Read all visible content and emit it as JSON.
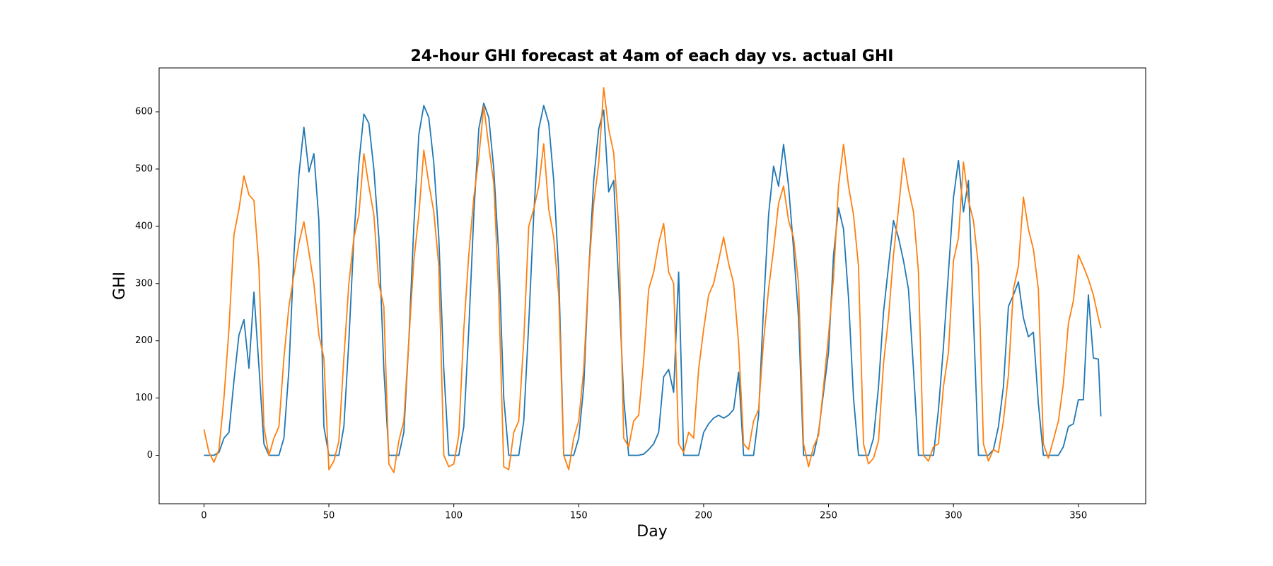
{
  "chart_data": {
    "type": "line",
    "title": "24-hour GHI forecast at 4am of each day vs. actual GHI",
    "x_label": "Day",
    "y_label": "GHI",
    "x": [
      0,
      2,
      4,
      6,
      8,
      10,
      12,
      14,
      16,
      18,
      20,
      22,
      24,
      26,
      28,
      30,
      32,
      34,
      36,
      38,
      40,
      42,
      44,
      46,
      48,
      50,
      52,
      54,
      56,
      58,
      60,
      62,
      64,
      66,
      68,
      70,
      72,
      74,
      76,
      78,
      80,
      82,
      84,
      86,
      88,
      90,
      92,
      94,
      96,
      98,
      100,
      102,
      104,
      106,
      108,
      110,
      112,
      114,
      116,
      118,
      120,
      122,
      124,
      126,
      128,
      130,
      132,
      134,
      136,
      138,
      140,
      142,
      144,
      146,
      148,
      150,
      152,
      154,
      156,
      158,
      160,
      162,
      164,
      166,
      168,
      170,
      172,
      174,
      176,
      178,
      180,
      182,
      184,
      186,
      188,
      190,
      192,
      194,
      196,
      198,
      200,
      202,
      204,
      206,
      208,
      210,
      212,
      214,
      216,
      218,
      220,
      222,
      224,
      226,
      228,
      230,
      232,
      234,
      236,
      238,
      240,
      242,
      244,
      246,
      248,
      250,
      252,
      254,
      256,
      258,
      260,
      262,
      264,
      266,
      268,
      270,
      272,
      274,
      276,
      278,
      280,
      282,
      284,
      286,
      288,
      290,
      292,
      294,
      296,
      298,
      300,
      302,
      304,
      306,
      308,
      310,
      312,
      314,
      316,
      318,
      320,
      322,
      324,
      326,
      328,
      330,
      332,
      334,
      336,
      338,
      340,
      342,
      344,
      346,
      348,
      350,
      352,
      354,
      356,
      358,
      359
    ],
    "series": [
      {
        "color": "#1f77b4",
        "values": [
          0,
          0,
          0,
          5,
          30,
          40,
          130,
          210,
          237,
          152,
          285,
          155,
          20,
          0,
          0,
          0,
          30,
          150,
          350,
          490,
          573,
          495,
          527,
          410,
          50,
          0,
          0,
          0,
          50,
          200,
          380,
          510,
          596,
          580,
          500,
          380,
          150,
          0,
          0,
          0,
          40,
          200,
          400,
          560,
          611,
          590,
          510,
          380,
          150,
          0,
          0,
          0,
          50,
          220,
          420,
          570,
          615,
          590,
          500,
          350,
          100,
          0,
          0,
          0,
          60,
          230,
          420,
          570,
          611,
          580,
          480,
          320,
          0,
          0,
          0,
          30,
          120,
          320,
          480,
          570,
          603,
          460,
          480,
          300,
          100,
          0,
          0,
          0,
          2,
          10,
          20,
          40,
          137,
          150,
          110,
          320,
          0,
          0,
          0,
          0,
          40,
          55,
          65,
          70,
          65,
          70,
          80,
          145,
          0,
          0,
          0,
          70,
          260,
          420,
          505,
          470,
          543,
          470,
          360,
          240,
          0,
          0,
          0,
          40,
          110,
          180,
          350,
          432,
          395,
          275,
          100,
          0,
          0,
          0,
          30,
          120,
          250,
          330,
          410,
          380,
          340,
          290,
          150,
          0,
          0,
          0,
          0,
          80,
          190,
          320,
          450,
          515,
          425,
          480,
          240,
          0,
          0,
          0,
          10,
          50,
          120,
          260,
          280,
          303,
          240,
          207,
          215,
          90,
          0,
          0,
          0,
          0,
          15,
          50,
          55,
          97,
          97,
          280,
          170,
          168,
          68
        ]
      },
      {
        "color": "#ff7f0e",
        "values": [
          45,
          5,
          -12,
          10,
          100,
          220,
          385,
          430,
          488,
          455,
          445,
          330,
          50,
          0,
          30,
          50,
          170,
          260,
          315,
          370,
          408,
          355,
          300,
          210,
          170,
          -25,
          -10,
          25,
          170,
          300,
          380,
          420,
          527,
          470,
          420,
          300,
          260,
          -15,
          -30,
          25,
          60,
          200,
          340,
          420,
          533,
          475,
          425,
          330,
          0,
          -20,
          -15,
          35,
          220,
          350,
          450,
          520,
          610,
          540,
          475,
          280,
          -20,
          -25,
          40,
          60,
          200,
          400,
          430,
          470,
          544,
          430,
          380,
          280,
          0,
          -25,
          30,
          60,
          150,
          320,
          440,
          510,
          642,
          570,
          528,
          400,
          30,
          15,
          60,
          70,
          165,
          290,
          320,
          370,
          405,
          320,
          300,
          20,
          5,
          40,
          30,
          150,
          220,
          280,
          300,
          340,
          381,
          335,
          300,
          195,
          20,
          10,
          60,
          80,
          200,
          290,
          360,
          440,
          470,
          410,
          380,
          300,
          20,
          -20,
          15,
          35,
          120,
          210,
          310,
          470,
          543,
          470,
          420,
          330,
          20,
          -15,
          -5,
          25,
          160,
          240,
          350,
          430,
          519,
          465,
          425,
          320,
          0,
          -10,
          15,
          20,
          120,
          180,
          340,
          380,
          512,
          445,
          410,
          330,
          20,
          -10,
          10,
          5,
          60,
          140,
          290,
          330,
          451,
          395,
          360,
          290,
          20,
          -5,
          27,
          60,
          125,
          230,
          270,
          350,
          330,
          308,
          280,
          240,
          222
        ]
      }
    ],
    "xlim": [
      -17.95,
      376.95
    ],
    "ylim": [
      -84.6,
      676.6
    ],
    "xticks": [
      0,
      50,
      100,
      150,
      200,
      250,
      300,
      350
    ],
    "yticks": [
      0,
      100,
      200,
      300,
      400,
      500,
      600
    ],
    "grid": false
  }
}
